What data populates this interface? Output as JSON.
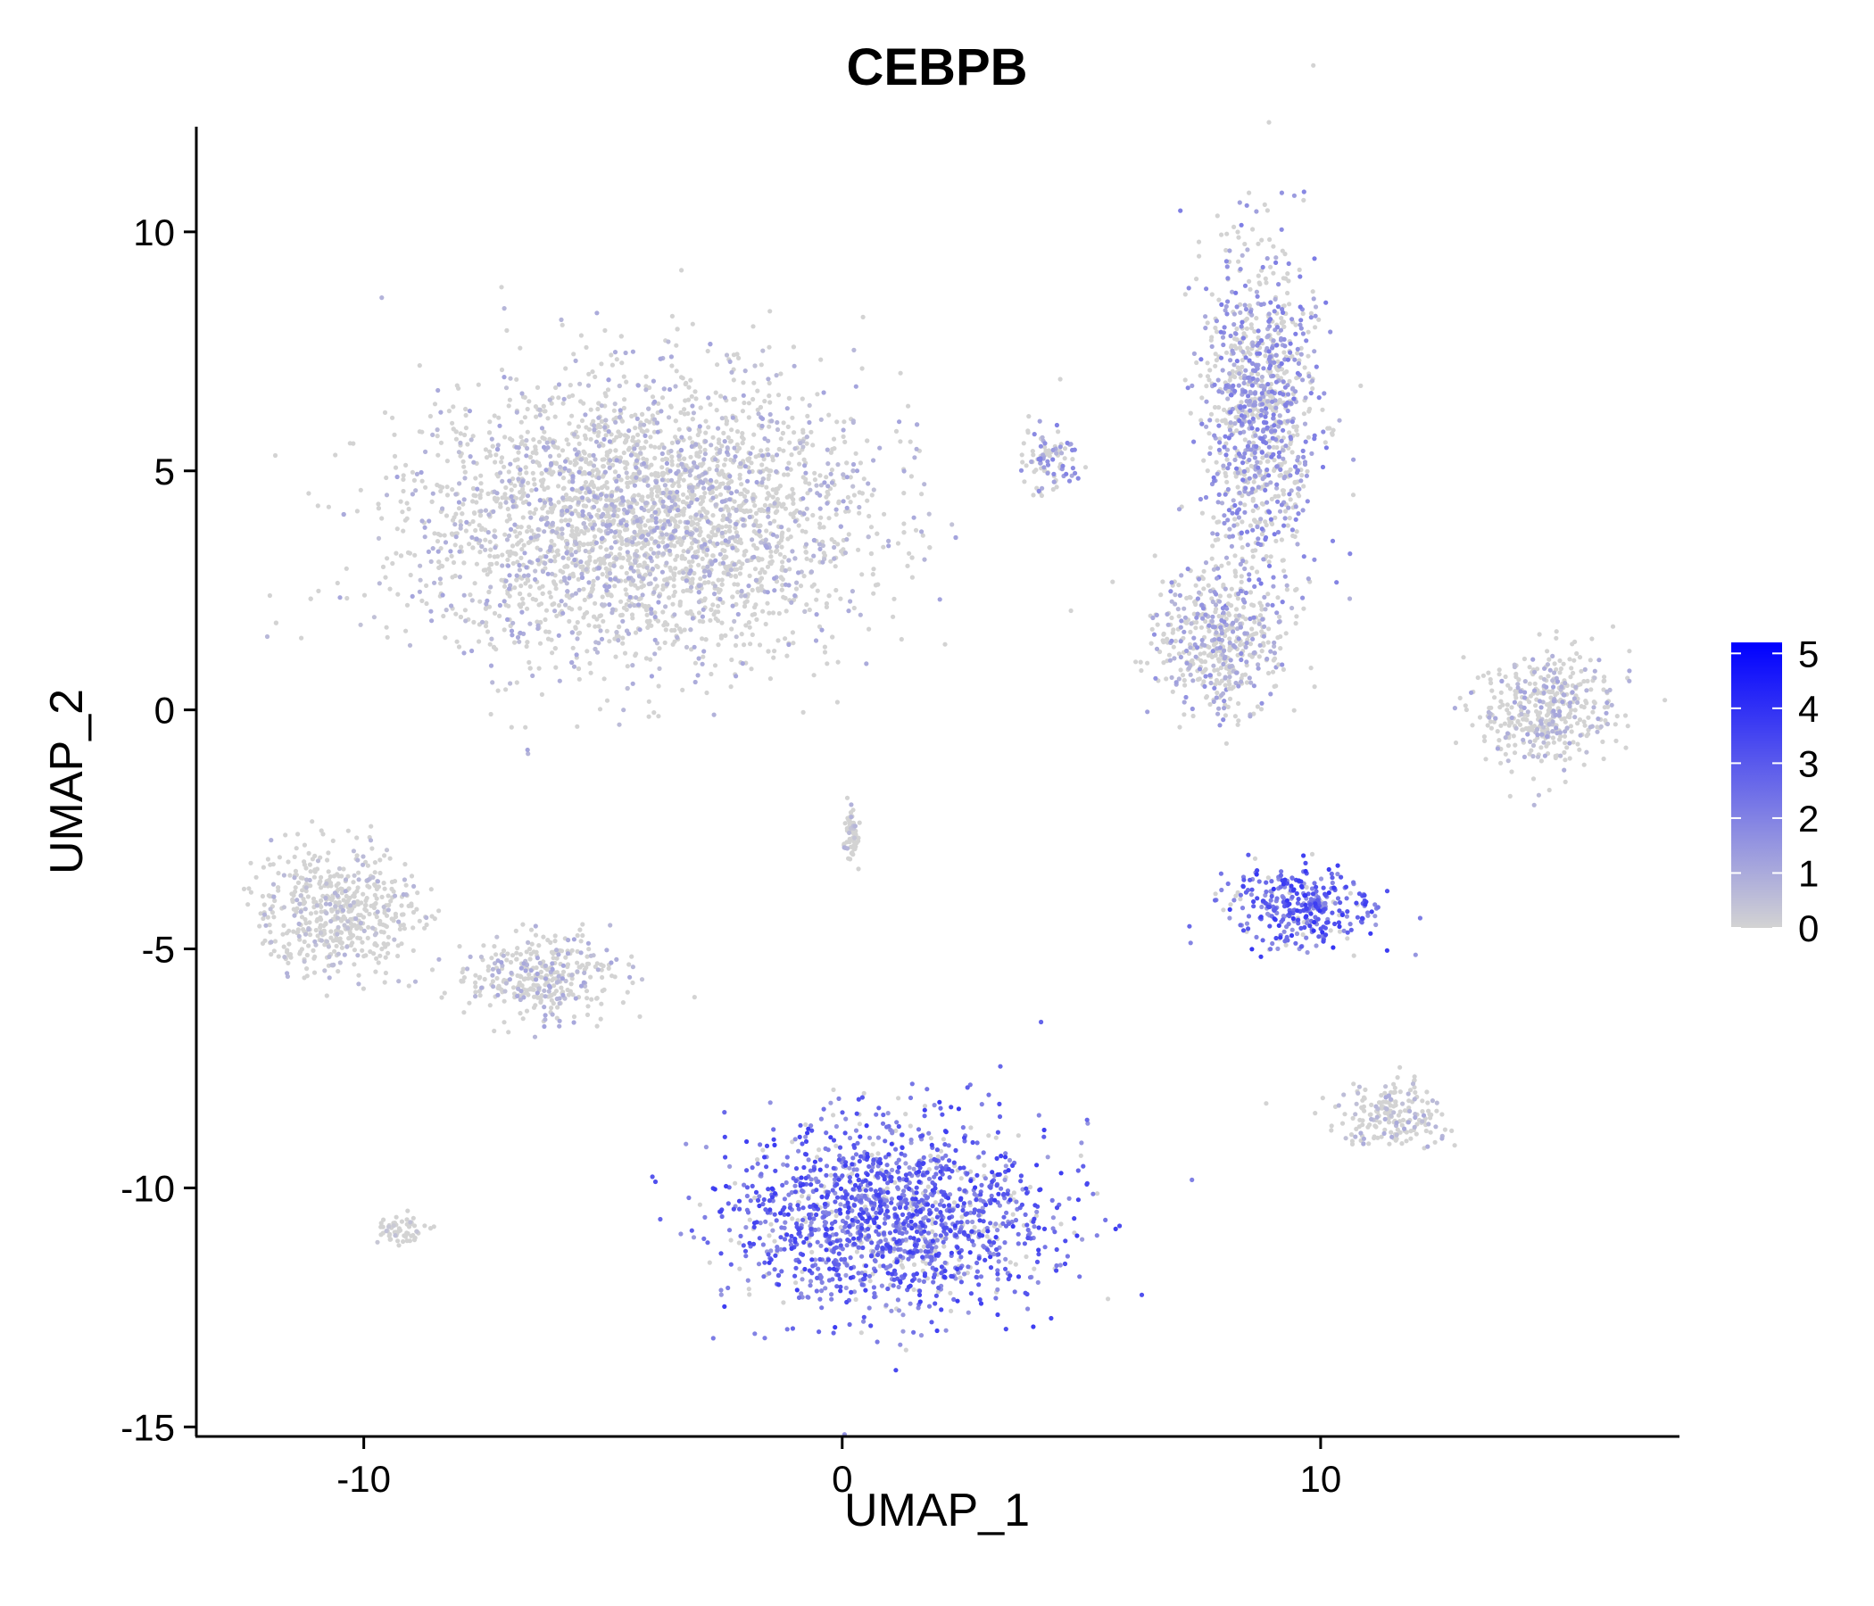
{
  "chart_data": {
    "type": "scatter",
    "title": "CEBPB",
    "xlabel": "UMAP_1",
    "ylabel": "UMAP_2",
    "xlim": [
      -13.5,
      17.5
    ],
    "ylim": [
      -15.2,
      12.2
    ],
    "x_ticks": [
      -10,
      0,
      10
    ],
    "x_tick_labels": [
      "-10",
      "0",
      "10"
    ],
    "y_ticks": [
      10,
      5,
      0,
      -5,
      -10,
      -15
    ],
    "y_tick_labels": [
      "10",
      "5",
      "0",
      "-5",
      "-10",
      "-15"
    ],
    "grid": false,
    "color_scale": {
      "low": 0,
      "high": 5.2,
      "low_color": "#d3d3d3",
      "high_color": "#0000ff",
      "ticks": [
        0,
        1,
        2,
        3,
        4,
        5
      ],
      "tick_labels": [
        "0",
        "1",
        "2",
        "3",
        "4",
        "5"
      ],
      "legend_position": "right"
    },
    "clusters": [
      {
        "name": "large-top-left",
        "center": [
          -4.2,
          4.0
        ],
        "spread": [
          4.6,
          2.9
        ],
        "mean_expression": 0.7
      },
      {
        "name": "top-right-upper",
        "center": [
          8.7,
          6.2
        ],
        "spread": [
          1.2,
          3.4
        ],
        "mean_expression": 1.3
      },
      {
        "name": "top-right-stem",
        "center": [
          7.9,
          1.5
        ],
        "spread": [
          1.3,
          1.5
        ],
        "mean_expression": 1.0
      },
      {
        "name": "small-mid-top",
        "center": [
          4.3,
          5.2
        ],
        "spread": [
          0.6,
          0.6
        ],
        "mean_expression": 1.2
      },
      {
        "name": "far-right-arc",
        "center": [
          14.7,
          0.0
        ],
        "spread": [
          1.4,
          1.2
        ],
        "mean_expression": 0.7
      },
      {
        "name": "right-middle",
        "center": [
          9.6,
          -4.1
        ],
        "spread": [
          1.5,
          0.9
        ],
        "mean_expression": 2.3
      },
      {
        "name": "bottom-large",
        "center": [
          1.0,
          -10.6
        ],
        "spread": [
          3.3,
          1.9
        ],
        "mean_expression": 2.2
      },
      {
        "name": "left-middle-a",
        "center": [
          -10.5,
          -4.2
        ],
        "spread": [
          1.6,
          1.3
        ],
        "mean_expression": 0.5
      },
      {
        "name": "left-middle-b",
        "center": [
          -6.3,
          -5.6
        ],
        "spread": [
          1.5,
          0.9
        ],
        "mean_expression": 0.7
      },
      {
        "name": "bottom-left-small",
        "center": [
          -9.2,
          -10.9
        ],
        "spread": [
          0.5,
          0.3
        ],
        "mean_expression": 0.3
      },
      {
        "name": "bottom-right-small",
        "center": [
          11.5,
          -8.5
        ],
        "spread": [
          1.1,
          0.7
        ],
        "mean_expression": 0.6
      },
      {
        "name": "center-thin",
        "center": [
          0.2,
          -2.6
        ],
        "spread": [
          0.15,
          0.5
        ],
        "mean_expression": 0.5
      }
    ]
  }
}
